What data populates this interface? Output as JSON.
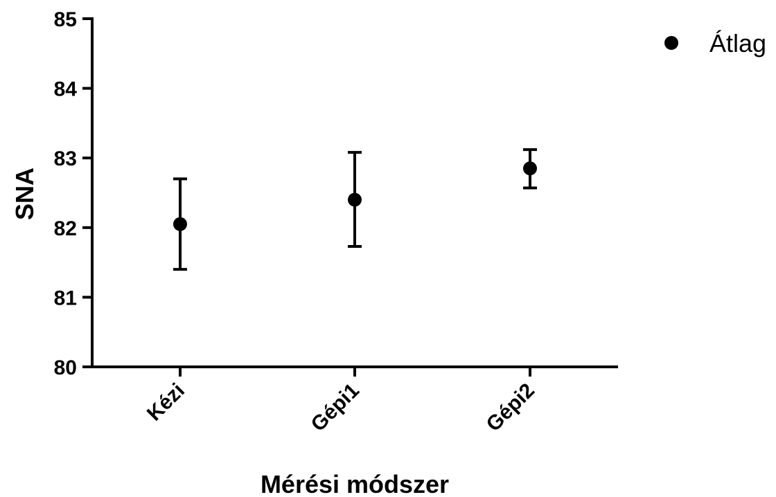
{
  "chart_data": {
    "type": "scatter",
    "title": "",
    "xlabel": "Mérési módszer",
    "ylabel": "SNA",
    "ylim": [
      80,
      85
    ],
    "yticks": [
      80,
      81,
      82,
      83,
      84,
      85
    ],
    "categories": [
      "Kézi",
      "Gépi1",
      "Gépi2"
    ],
    "series": [
      {
        "name": "Átlag",
        "values": [
          82.05,
          82.4,
          82.85
        ],
        "error_low": [
          81.4,
          81.73,
          82.57
        ],
        "error_high": [
          82.7,
          83.08,
          83.12
        ]
      }
    ],
    "grid": false,
    "legend_position": "top-right",
    "colors": {
      "marker": "#000000",
      "axis": "#000000"
    }
  }
}
